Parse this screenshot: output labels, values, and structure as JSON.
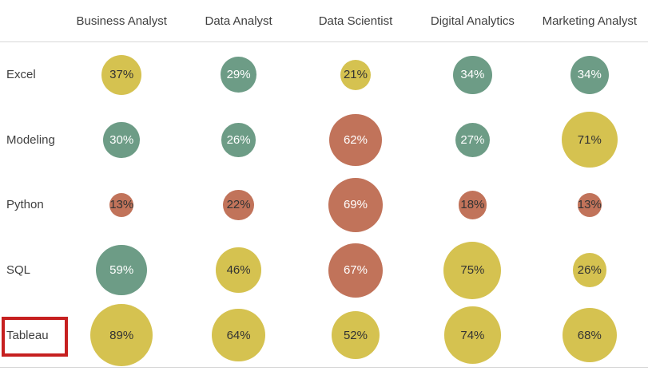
{
  "chart_data": {
    "type": "scatter",
    "variant": "bubble-matrix",
    "title": "",
    "legend_position": "none",
    "grid": "off",
    "columns": [
      "Business Analyst",
      "Data Analyst",
      "Data Scientist",
      "Digital Analytics",
      "Marketing Analyst"
    ],
    "rows": [
      {
        "label": "Excel",
        "cells": [
          {
            "value": 37,
            "label": "37%",
            "color": "yellow",
            "text": "dark"
          },
          {
            "value": 29,
            "label": "29%",
            "color": "green",
            "text": "white"
          },
          {
            "value": 21,
            "label": "21%",
            "color": "yellow",
            "text": "dark"
          },
          {
            "value": 34,
            "label": "34%",
            "color": "green",
            "text": "white"
          },
          {
            "value": 34,
            "label": "34%",
            "color": "green",
            "text": "white"
          }
        ]
      },
      {
        "label": "Modeling",
        "cells": [
          {
            "value": 30,
            "label": "30%",
            "color": "green",
            "text": "white"
          },
          {
            "value": 26,
            "label": "26%",
            "color": "green",
            "text": "white"
          },
          {
            "value": 62,
            "label": "62%",
            "color": "orange",
            "text": "white"
          },
          {
            "value": 27,
            "label": "27%",
            "color": "green",
            "text": "white"
          },
          {
            "value": 71,
            "label": "71%",
            "color": "yellow",
            "text": "dark"
          }
        ]
      },
      {
        "label": "Python",
        "cells": [
          {
            "value": 13,
            "label": "13%",
            "color": "orange",
            "text": "dark"
          },
          {
            "value": 22,
            "label": "22%",
            "color": "orange",
            "text": "dark"
          },
          {
            "value": 69,
            "label": "69%",
            "color": "orange",
            "text": "white"
          },
          {
            "value": 18,
            "label": "18%",
            "color": "orange",
            "text": "dark"
          },
          {
            "value": 13,
            "label": "13%",
            "color": "orange",
            "text": "dark"
          }
        ]
      },
      {
        "label": "SQL",
        "cells": [
          {
            "value": 59,
            "label": "59%",
            "color": "green",
            "text": "white"
          },
          {
            "value": 46,
            "label": "46%",
            "color": "yellow",
            "text": "dark"
          },
          {
            "value": 67,
            "label": "67%",
            "color": "orange",
            "text": "white"
          },
          {
            "value": 75,
            "label": "75%",
            "color": "yellow",
            "text": "dark"
          },
          {
            "value": 26,
            "label": "26%",
            "color": "yellow",
            "text": "dark"
          }
        ]
      },
      {
        "label": "Tableau",
        "cells": [
          {
            "value": 89,
            "label": "89%",
            "color": "yellow",
            "text": "dark"
          },
          {
            "value": 64,
            "label": "64%",
            "color": "yellow",
            "text": "dark"
          },
          {
            "value": 52,
            "label": "52%",
            "color": "yellow",
            "text": "dark"
          },
          {
            "value": 74,
            "label": "74%",
            "color": "yellow",
            "text": "dark"
          },
          {
            "value": 68,
            "label": "68%",
            "color": "yellow",
            "text": "dark"
          }
        ]
      }
    ],
    "palette": {
      "yellow": "#d5c250",
      "green": "#6d9c86",
      "orange": "#c1735a"
    },
    "text_colors": {
      "dark": "#333333",
      "white": "#ffffff"
    },
    "size_scale": 8.3
  },
  "highlight": {
    "target_row": "Tableau",
    "border_color": "#c62020"
  }
}
